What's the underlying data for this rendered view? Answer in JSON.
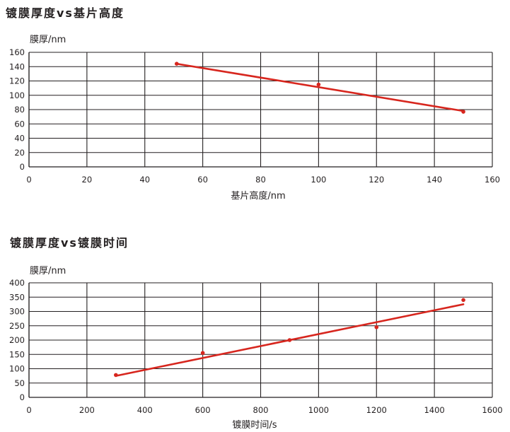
{
  "chart_data": [
    {
      "type": "scatter",
      "title": "镀膜厚度vs基片高度",
      "ylabel": "膜厚/nm",
      "xlabel": "基片高度/nm",
      "xlim": [
        0,
        160
      ],
      "ylim": [
        0,
        160
      ],
      "xticks": [
        0,
        20,
        40,
        60,
        80,
        100,
        120,
        140,
        160
      ],
      "yticks": [
        0,
        20,
        40,
        60,
        80,
        100,
        120,
        140,
        160
      ],
      "grid": true,
      "points": {
        "x": [
          51,
          100,
          150
        ],
        "y": [
          144,
          115,
          77
        ]
      },
      "trendline": {
        "x": [
          51,
          150
        ],
        "y": [
          144,
          78
        ]
      },
      "color": "#d7261e"
    },
    {
      "type": "scatter",
      "title": "镀膜厚度vs镀膜时间",
      "ylabel": "膜厚/nm",
      "xlabel": "镀膜时间/s",
      "xlim": [
        0,
        1600
      ],
      "ylim": [
        0,
        400
      ],
      "xticks": [
        0,
        200,
        400,
        600,
        800,
        1000,
        1200,
        1400,
        1600
      ],
      "yticks": [
        0,
        50,
        100,
        150,
        200,
        250,
        300,
        350,
        400
      ],
      "grid": true,
      "points": {
        "x": [
          300,
          600,
          900,
          1200,
          1500
        ],
        "y": [
          78,
          155,
          200,
          245,
          340
        ]
      },
      "trendline": {
        "x": [
          300,
          1500
        ],
        "y": [
          75,
          325
        ]
      },
      "color": "#d7261e"
    }
  ]
}
